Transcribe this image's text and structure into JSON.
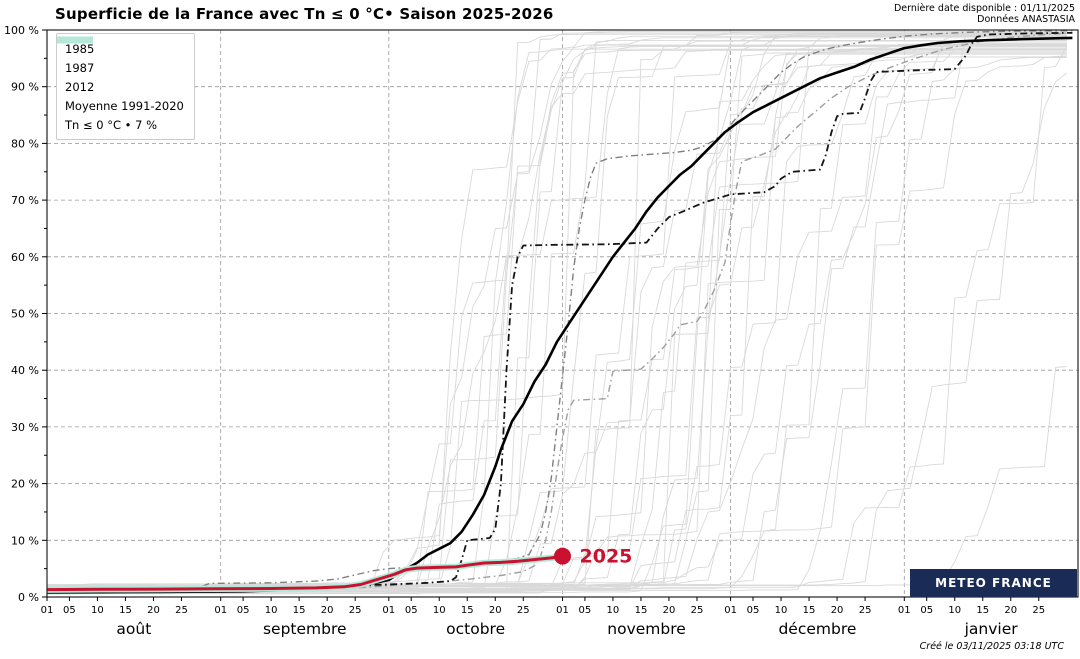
{
  "header": {
    "title": "Superficie de la France avec Tn ≤ 0 °C• Saison 2025-2026",
    "info_line1": "Dernière date disponible : 01/11/2025",
    "info_line2": "Données ANASTASIA"
  },
  "footer": {
    "logo": "METEO FRANCE",
    "logo_color": "#1a2b56",
    "created": "Créé le 03/11/2025 03:18 UTC"
  },
  "colors": {
    "accent_red": "#c9122f",
    "band_cyan": "#b4e8d8",
    "ensemble_gray": "#d9d9d9",
    "year1985": "#7f7f7f",
    "year1987": "#9e9e9e",
    "year2012": "#141414",
    "mean_black": "#000000",
    "grid": "#999999",
    "frame": "#222222"
  },
  "chart_data": {
    "type": "line",
    "title": "Superficie de la France avec Tn ≤ 0 °C• Saison 2025-2026",
    "xlabel": "",
    "ylabel": "",
    "x_encoding": "days_since_01_aout",
    "x_range": [
      0,
      184
    ],
    "ylim": [
      0,
      100
    ],
    "grid": true,
    "legend_position": "upper-left",
    "x_axis": {
      "months": [
        {
          "label": "août",
          "days": 31
        },
        {
          "label": "septembre",
          "days": 30
        },
        {
          "label": "octobre",
          "days": 31
        },
        {
          "label": "novembre",
          "days": 30
        },
        {
          "label": "décembre",
          "days": 31
        },
        {
          "label": "janvier",
          "days": 31
        }
      ],
      "day_ticks": [
        1,
        5,
        10,
        15,
        20,
        25
      ]
    },
    "y_axis": {
      "min": 0,
      "max": 100,
      "major_step": 10,
      "minor_step": 5,
      "tick_suffix": " %"
    },
    "legend": [
      {
        "label": "1985",
        "style": "dashdot",
        "color": "#7f7f7f",
        "width": 1.4
      },
      {
        "label": "1987",
        "style": "dashdot",
        "color": "#9e9e9e",
        "width": 1.4
      },
      {
        "label": "2012",
        "style": "dashdot",
        "color": "#141414",
        "width": 1.8
      },
      {
        "label": "Moyenne 1991-2020",
        "style": "solid",
        "color": "#000000",
        "width": 2.6
      },
      {
        "label": "Tn ≤ 0 °C • 7 %",
        "style": "band",
        "color": "#b4e8d8"
      }
    ],
    "series": [
      {
        "name": "1985",
        "style": "dashdot",
        "color": "#7f7f7f",
        "width": 1.4,
        "points": [
          [
            0,
            1.2
          ],
          [
            20,
            1.4
          ],
          [
            27,
            1.6
          ],
          [
            29,
            2.4
          ],
          [
            40,
            2.5
          ],
          [
            48,
            2.8
          ],
          [
            52,
            3.2
          ],
          [
            55,
            3.9
          ],
          [
            58,
            4.6
          ],
          [
            61,
            5.0
          ],
          [
            68,
            5.4
          ],
          [
            74,
            5.7
          ],
          [
            80,
            6.2
          ],
          [
            84,
            6.8
          ],
          [
            86,
            7.5
          ],
          [
            88,
            11
          ],
          [
            89,
            15
          ],
          [
            90,
            21
          ],
          [
            91,
            30
          ],
          [
            92,
            39
          ],
          [
            93,
            48
          ],
          [
            94,
            58
          ],
          [
            95,
            65
          ],
          [
            96,
            70
          ],
          [
            97,
            74
          ],
          [
            98,
            76.5
          ],
          [
            100,
            77.3
          ],
          [
            104,
            77.8
          ],
          [
            108,
            78.1
          ],
          [
            112,
            78.4
          ],
          [
            115,
            78.8
          ],
          [
            117,
            79.4
          ],
          [
            119,
            80.5
          ],
          [
            121,
            82
          ],
          [
            123,
            84.5
          ],
          [
            125,
            86.5
          ],
          [
            127,
            88.5
          ],
          [
            129,
            90.5
          ],
          [
            131,
            92.5
          ],
          [
            133,
            94
          ],
          [
            135,
            95.2
          ],
          [
            138,
            96.3
          ],
          [
            141,
            97.1
          ],
          [
            145,
            97.8
          ],
          [
            149,
            98.4
          ],
          [
            153,
            98.9
          ],
          [
            158,
            99.3
          ],
          [
            164,
            99.6
          ],
          [
            172,
            99.8
          ],
          [
            183,
            99.9
          ]
        ]
      },
      {
        "name": "1987",
        "style": "dashdot",
        "color": "#9e9e9e",
        "width": 1.4,
        "points": [
          [
            0,
            1.0
          ],
          [
            30,
            1.1
          ],
          [
            45,
            1.3
          ],
          [
            55,
            1.6
          ],
          [
            61,
            2.0
          ],
          [
            68,
            2.5
          ],
          [
            75,
            3.1
          ],
          [
            81,
            3.8
          ],
          [
            85,
            4.5
          ],
          [
            87,
            5.5
          ],
          [
            88,
            7
          ],
          [
            89,
            10
          ],
          [
            90,
            15
          ],
          [
            91,
            22
          ],
          [
            92,
            28
          ],
          [
            93,
            33
          ],
          [
            94,
            34.7
          ],
          [
            100,
            35
          ],
          [
            101,
            39.8
          ],
          [
            106,
            40.2
          ],
          [
            108,
            42
          ],
          [
            110,
            44
          ],
          [
            112,
            46.5
          ],
          [
            113,
            48
          ],
          [
            116,
            48.6
          ],
          [
            117,
            50
          ],
          [
            119,
            54
          ],
          [
            121,
            59
          ],
          [
            122,
            66
          ],
          [
            123,
            72
          ],
          [
            124,
            76.8
          ],
          [
            127,
            77.8
          ],
          [
            130,
            79
          ],
          [
            132,
            81
          ],
          [
            134,
            83
          ],
          [
            137,
            85.5
          ],
          [
            140,
            88
          ],
          [
            143,
            90
          ],
          [
            147,
            92
          ],
          [
            151,
            93.6
          ],
          [
            155,
            95
          ],
          [
            160,
            96.6
          ],
          [
            166,
            97.9
          ],
          [
            172,
            98.7
          ],
          [
            178,
            99.2
          ],
          [
            183,
            99.5
          ]
        ]
      },
      {
        "name": "2012",
        "style": "dashdot",
        "color": "#141414",
        "width": 1.8,
        "points": [
          [
            0,
            1.2
          ],
          [
            25,
            1.4
          ],
          [
            40,
            1.7
          ],
          [
            50,
            1.9
          ],
          [
            57,
            2.1
          ],
          [
            61,
            2.2
          ],
          [
            68,
            2.5
          ],
          [
            72,
            2.8
          ],
          [
            73,
            3.5
          ],
          [
            74,
            6.5
          ],
          [
            75,
            10
          ],
          [
            79,
            10.4
          ],
          [
            80,
            12
          ],
          [
            81,
            20
          ],
          [
            82,
            40
          ],
          [
            83,
            55
          ],
          [
            84,
            60
          ],
          [
            85,
            62
          ],
          [
            90,
            62.1
          ],
          [
            100,
            62.2
          ],
          [
            107,
            62.5
          ],
          [
            109,
            65
          ],
          [
            111,
            67
          ],
          [
            114,
            68.2
          ],
          [
            117,
            69.5
          ],
          [
            120,
            70.4
          ],
          [
            122,
            71
          ],
          [
            128,
            71.4
          ],
          [
            130,
            72.5
          ],
          [
            131,
            73.8
          ],
          [
            133,
            75
          ],
          [
            138,
            75.4
          ],
          [
            139,
            78
          ],
          [
            140,
            82
          ],
          [
            141,
            84.8
          ],
          [
            142,
            85.2
          ],
          [
            145,
            85.4
          ],
          [
            146,
            88
          ],
          [
            147,
            91
          ],
          [
            148,
            92.6
          ],
          [
            155,
            92.9
          ],
          [
            162,
            93.1
          ],
          [
            164,
            95.5
          ],
          [
            165,
            97.5
          ],
          [
            166,
            98.8
          ],
          [
            168,
            99.2
          ],
          [
            175,
            99.4
          ],
          [
            183,
            99.5
          ]
        ]
      },
      {
        "name": "Moyenne 1991-2020",
        "style": "solid",
        "color": "#000000",
        "width": 2.6,
        "points": [
          [
            0,
            0.8
          ],
          [
            20,
            0.9
          ],
          [
            35,
            1.0
          ],
          [
            45,
            1.3
          ],
          [
            52,
            1.6
          ],
          [
            57,
            2.2
          ],
          [
            61,
            3.0
          ],
          [
            63,
            4.3
          ],
          [
            66,
            6.0
          ],
          [
            68,
            7.5
          ],
          [
            70,
            8.5
          ],
          [
            72,
            9.5
          ],
          [
            74,
            11.5
          ],
          [
            76,
            14.5
          ],
          [
            78,
            18
          ],
          [
            80,
            23
          ],
          [
            81,
            26
          ],
          [
            83,
            31
          ],
          [
            85,
            34
          ],
          [
            87,
            38
          ],
          [
            89,
            41
          ],
          [
            91,
            45
          ],
          [
            93,
            48
          ],
          [
            95,
            51
          ],
          [
            97,
            54
          ],
          [
            99,
            57
          ],
          [
            101,
            60
          ],
          [
            103,
            62.5
          ],
          [
            105,
            65
          ],
          [
            107,
            68
          ],
          [
            109,
            70.5
          ],
          [
            111,
            72.5
          ],
          [
            113,
            74.5
          ],
          [
            115,
            76
          ],
          [
            117,
            78
          ],
          [
            119,
            80
          ],
          [
            121,
            82
          ],
          [
            123,
            83.5
          ],
          [
            126,
            85.5
          ],
          [
            129,
            87
          ],
          [
            132,
            88.5
          ],
          [
            135,
            90
          ],
          [
            138,
            91.5
          ],
          [
            141,
            92.5
          ],
          [
            144,
            93.5
          ],
          [
            147,
            94.8
          ],
          [
            150,
            95.8
          ],
          [
            153,
            96.8
          ],
          [
            156,
            97.3
          ],
          [
            159,
            97.7
          ],
          [
            163,
            98.0
          ],
          [
            168,
            98.2
          ],
          [
            174,
            98.4
          ],
          [
            183,
            98.6
          ]
        ]
      },
      {
        "name": "2025",
        "style": "solid",
        "color": "#c9122f",
        "width": 3,
        "halo_color": "#b4e8d8",
        "halo_width": 6.5,
        "points": [
          [
            0,
            1.3
          ],
          [
            10,
            1.35
          ],
          [
            20,
            1.4
          ],
          [
            30,
            1.45
          ],
          [
            40,
            1.5
          ],
          [
            48,
            1.6
          ],
          [
            53,
            1.8
          ],
          [
            56,
            2.2
          ],
          [
            58,
            2.8
          ],
          [
            60,
            3.4
          ],
          [
            62,
            4.0
          ],
          [
            64,
            4.8
          ],
          [
            66,
            5.1
          ],
          [
            69,
            5.2
          ],
          [
            73,
            5.3
          ],
          [
            75,
            5.6
          ],
          [
            78,
            6.0
          ],
          [
            81,
            6.1
          ],
          [
            84,
            6.3
          ],
          [
            86,
            6.5
          ],
          [
            88,
            6.7
          ],
          [
            90,
            6.9
          ],
          [
            92,
            7.2
          ]
        ]
      }
    ],
    "annotation": {
      "label": "2025",
      "day": 92,
      "value": 7.2,
      "color": "#c9122f",
      "dot_radius": 8.5
    },
    "background_series": {
      "count": 38,
      "seed": 7,
      "color": "#d9d9d9",
      "width": 0.9
    }
  }
}
